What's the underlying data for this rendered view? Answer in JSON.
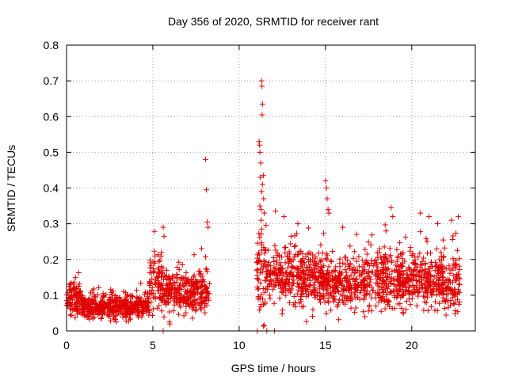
{
  "chart_data": {
    "type": "scatter",
    "title": "Day 356 of 2020, SRMTID for receiver rant",
    "xlabel": "GPS time / hours",
    "ylabel": "SRMTID / TECUs",
    "xlim": [
      0,
      23.68
    ],
    "ylim": [
      0,
      0.8
    ],
    "xticks": [
      0,
      5,
      10,
      15,
      20
    ],
    "xtick_labels": [
      "0",
      "5",
      "10",
      "15",
      "20"
    ],
    "yticks": [
      0,
      0.1,
      0.2,
      0.3,
      0.4,
      0.5,
      0.6,
      0.7,
      0.8
    ],
    "ytick_labels": [
      "0",
      "0.1",
      "0.2",
      "0.3",
      "0.4",
      "0.5",
      "0.6",
      "0.7",
      "0.8"
    ],
    "grid": true,
    "marker": "+",
    "color": "#e00000",
    "segments": [
      {
        "x0": 0.0,
        "x1": 0.9,
        "mean": 0.085,
        "spread": 0.03
      },
      {
        "x0": 0.9,
        "x1": 4.8,
        "mean": 0.068,
        "spread": 0.022
      },
      {
        "x0": 4.8,
        "x1": 5.5,
        "mean": 0.15,
        "spread": 0.05
      },
      {
        "x0": 5.5,
        "x1": 8.3,
        "mean": 0.11,
        "spread": 0.04
      },
      {
        "x0": 11.0,
        "x1": 11.6,
        "mean": 0.17,
        "spread": 0.09
      },
      {
        "x0": 11.6,
        "x1": 14.8,
        "mean": 0.15,
        "spread": 0.05
      },
      {
        "x0": 14.8,
        "x1": 17.0,
        "mean": 0.135,
        "spread": 0.05
      },
      {
        "x0": 17.0,
        "x1": 22.8,
        "mean": 0.14,
        "spread": 0.055
      }
    ],
    "sample_count": 2200,
    "spikes": [
      {
        "x": 5.6,
        "y": 0.29
      },
      {
        "x": 5.65,
        "y": 0.265
      },
      {
        "x": 5.5,
        "y": 0.22
      },
      {
        "x": 8.05,
        "y": 0.48
      },
      {
        "x": 8.1,
        "y": 0.395
      },
      {
        "x": 8.15,
        "y": 0.305
      },
      {
        "x": 8.2,
        "y": 0.29
      },
      {
        "x": 11.15,
        "y": 0.53
      },
      {
        "x": 11.18,
        "y": 0.52
      },
      {
        "x": 11.2,
        "y": 0.5
      },
      {
        "x": 11.3,
        "y": 0.7
      },
      {
        "x": 11.32,
        "y": 0.685
      },
      {
        "x": 11.35,
        "y": 0.635
      },
      {
        "x": 11.33,
        "y": 0.605
      },
      {
        "x": 11.25,
        "y": 0.47
      },
      {
        "x": 11.4,
        "y": 0.435
      },
      {
        "x": 11.35,
        "y": 0.41
      },
      {
        "x": 11.22,
        "y": 0.43
      },
      {
        "x": 11.3,
        "y": 0.39
      },
      {
        "x": 11.42,
        "y": 0.37
      },
      {
        "x": 11.2,
        "y": 0.35
      },
      {
        "x": 11.45,
        "y": 0.33
      },
      {
        "x": 11.28,
        "y": 0.31
      },
      {
        "x": 12.1,
        "y": 0.335
      },
      {
        "x": 12.6,
        "y": 0.32
      },
      {
        "x": 13.4,
        "y": 0.3
      },
      {
        "x": 15.0,
        "y": 0.42
      },
      {
        "x": 15.05,
        "y": 0.4
      },
      {
        "x": 15.1,
        "y": 0.37
      },
      {
        "x": 15.15,
        "y": 0.34
      },
      {
        "x": 15.2,
        "y": 0.33
      },
      {
        "x": 16.0,
        "y": 0.29
      },
      {
        "x": 18.8,
        "y": 0.345
      },
      {
        "x": 18.9,
        "y": 0.32
      },
      {
        "x": 20.5,
        "y": 0.33
      },
      {
        "x": 21.0,
        "y": 0.32
      },
      {
        "x": 21.5,
        "y": 0.3
      },
      {
        "x": 22.3,
        "y": 0.31
      },
      {
        "x": 22.7,
        "y": 0.32
      }
    ],
    "zero_points": [
      {
        "x": 5.6,
        "y": 0.0
      },
      {
        "x": 11.05,
        "y": 0.0
      },
      {
        "x": 11.6,
        "y": 0.0
      },
      {
        "x": 12.05,
        "y": 0.0
      }
    ]
  }
}
